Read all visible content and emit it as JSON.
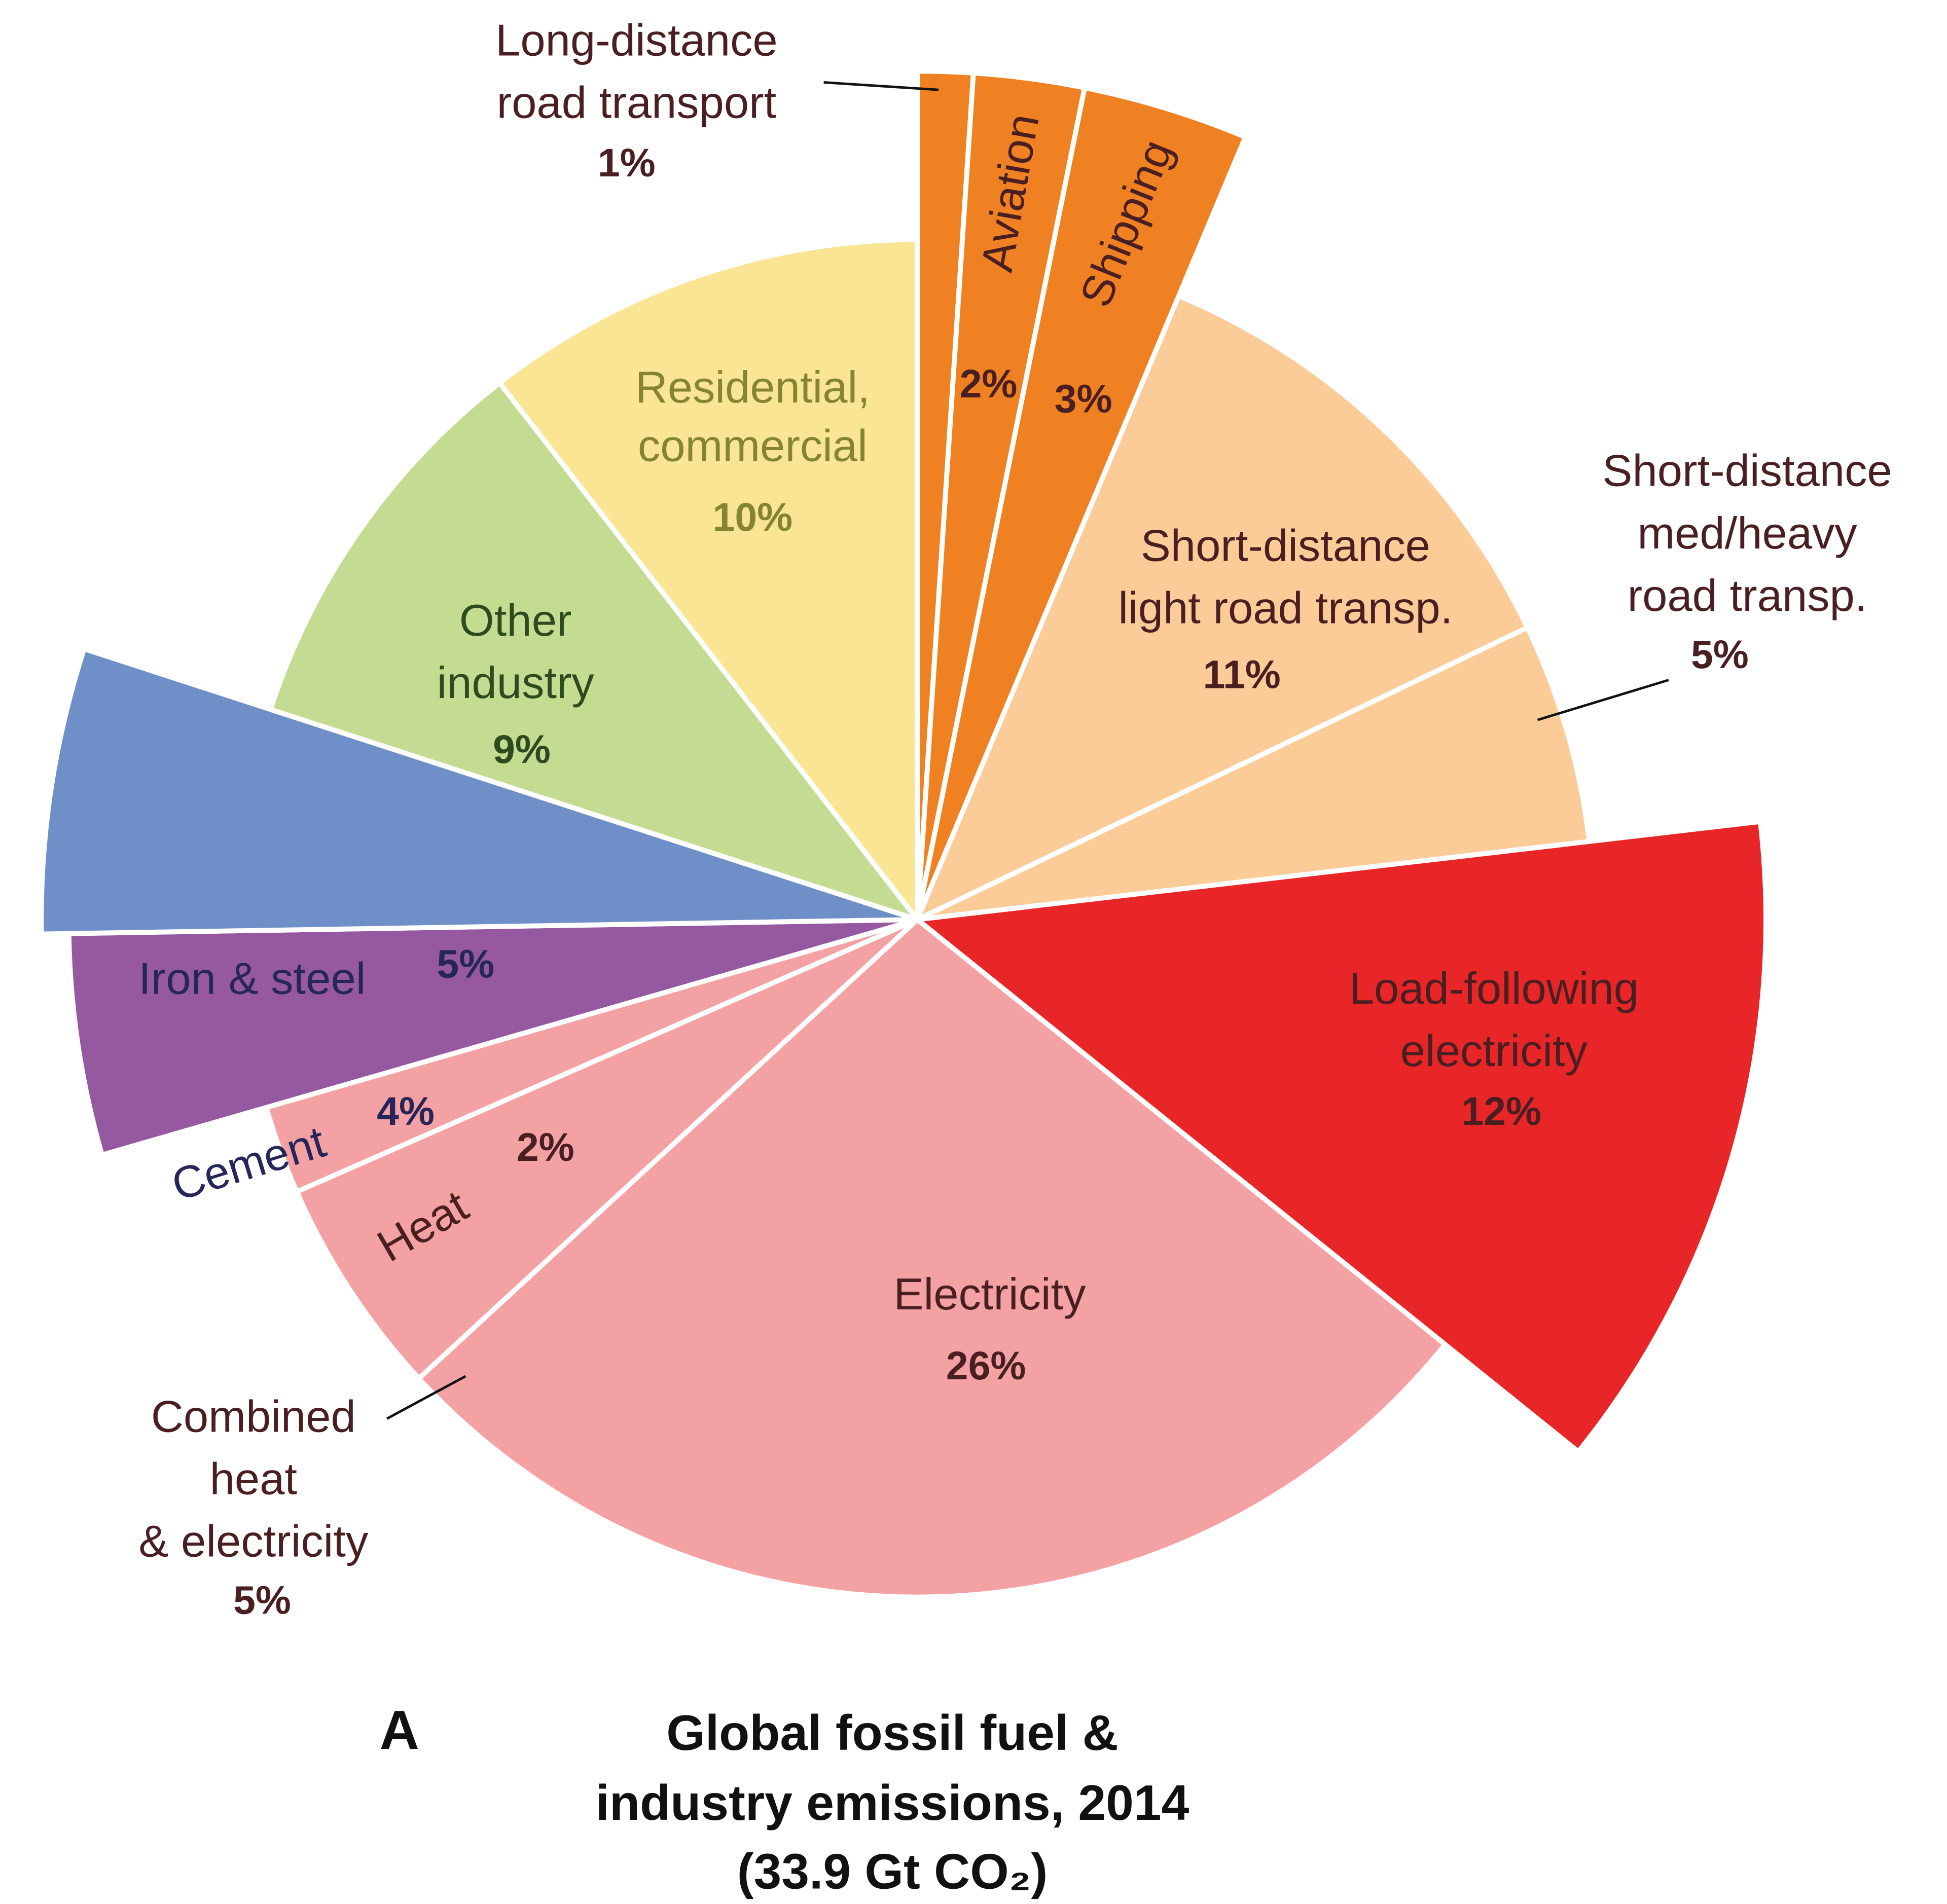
{
  "chart_data": {
    "type": "pie",
    "panel_label": "A",
    "title": [
      "Global fossil fuel &",
      "industry emissions, 2014",
      "(33.9 Gt CO₂)"
    ],
    "categories": [
      [
        "Long-distance",
        "road transport"
      ],
      [
        "Aviation"
      ],
      [
        "Shipping"
      ],
      [
        "Short-distance",
        "light road transp."
      ],
      [
        "Short-distance",
        "med/heavy",
        "road transp."
      ],
      [
        "Load-following",
        "electricity"
      ],
      [
        "Electricity"
      ],
      [
        "Combined",
        "heat",
        "& electricity"
      ],
      [
        "Heat"
      ],
      [
        "Cement"
      ],
      [
        "Iron & steel"
      ],
      [
        "Other",
        "industry"
      ],
      [
        "Residential,",
        "commercial"
      ]
    ],
    "values": [
      1,
      2,
      3,
      11,
      5,
      12,
      26,
      5,
      2,
      4,
      5,
      9,
      10
    ],
    "value_labels": [
      "1%",
      "2%",
      "3%",
      "11%",
      "5%",
      "12%",
      "26%",
      "5%",
      "2%",
      "4%",
      "5%",
      "9%",
      "10%"
    ],
    "colors": [
      "#f08122",
      "#f08122",
      "#f08122",
      "#fbcb98",
      "#fbcb98",
      "#e82527",
      "#f4a1a3",
      "#f4a1a3",
      "#f4a1a3",
      "#9558a1",
      "#6e8fc8",
      "#c4dc91",
      "#f9e594"
    ]
  }
}
